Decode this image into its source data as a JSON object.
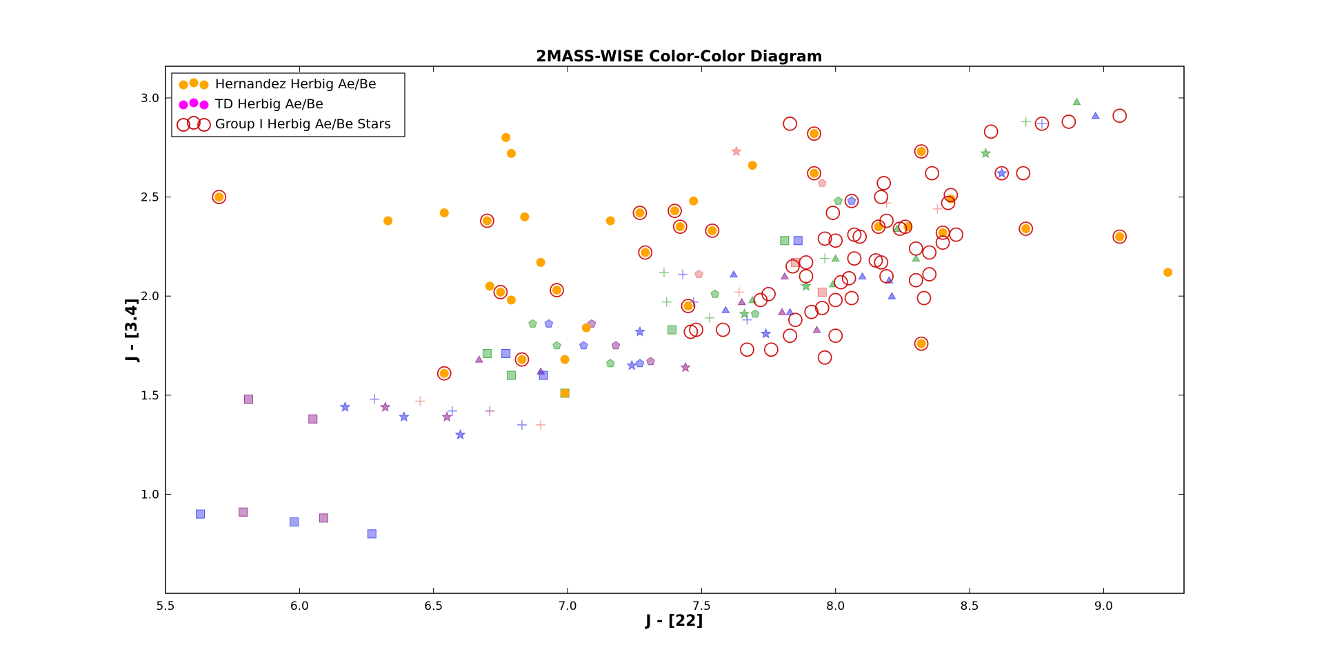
{
  "chart_data": {
    "type": "scatter",
    "title": "2MASS-WISE Color-Color Diagram",
    "xlabel": "J - [22]",
    "ylabel": "J - [3.4]",
    "xlim": [
      5.5,
      9.3
    ],
    "ylim": [
      0.5,
      3.16
    ],
    "xticks": [
      "5.5",
      "6.0",
      "6.5",
      "7.0",
      "7.5",
      "8.0",
      "8.5",
      "9.0"
    ],
    "yticks": [
      "1.0",
      "1.5",
      "2.0",
      "2.5",
      "3.0"
    ],
    "grid": false,
    "legend_position": "top-left",
    "colors": {
      "hernandez": "#ffa500",
      "td": "#ff00ff",
      "group1": "#cc0000",
      "blue": "#3333ee",
      "green": "#2ca02c",
      "purple": "#8b1a8b",
      "pink": "#ee6666"
    },
    "legend": [
      {
        "label": "Hernandez Herbig Ae/Be",
        "marker": "filled-circle",
        "color": "#ffa500"
      },
      {
        "label": "TD Herbig Ae/Be",
        "marker": "filled-circle",
        "color": "#ff00ff"
      },
      {
        "label": "Group I Herbig Ae/Be Stars",
        "marker": "open-circle",
        "color": "#cc0000"
      }
    ],
    "series": [
      {
        "name": "Hernandez Herbig Ae/Be",
        "points": [
          [
            5.7,
            2.5
          ],
          [
            6.33,
            2.38
          ],
          [
            6.54,
            2.42
          ],
          [
            6.54,
            1.61
          ],
          [
            6.7,
            2.38
          ],
          [
            6.71,
            2.05
          ],
          [
            6.75,
            2.02
          ],
          [
            6.77,
            2.8
          ],
          [
            6.79,
            2.72
          ],
          [
            6.79,
            1.98
          ],
          [
            6.83,
            1.68
          ],
          [
            6.84,
            2.4
          ],
          [
            6.9,
            2.17
          ],
          [
            6.96,
            2.03
          ],
          [
            6.99,
            1.68
          ],
          [
            6.99,
            1.51
          ],
          [
            7.07,
            1.84
          ],
          [
            7.16,
            2.38
          ],
          [
            7.27,
            2.42
          ],
          [
            7.29,
            2.22
          ],
          [
            7.4,
            2.43
          ],
          [
            7.42,
            2.35
          ],
          [
            7.45,
            1.95
          ],
          [
            7.47,
            2.48
          ],
          [
            7.54,
            2.33
          ],
          [
            7.69,
            2.66
          ],
          [
            7.92,
            2.82
          ],
          [
            7.92,
            2.62
          ],
          [
            8.16,
            2.35
          ],
          [
            8.27,
            2.35
          ],
          [
            8.32,
            2.73
          ],
          [
            8.32,
            1.76
          ],
          [
            8.4,
            2.32
          ],
          [
            8.71,
            2.34
          ],
          [
            9.06,
            2.3
          ],
          [
            9.24,
            2.12
          ],
          [
            8.43,
            2.49
          ]
        ]
      },
      {
        "name": "Group I Herbig Ae/Be Stars",
        "points": [
          [
            5.7,
            2.5
          ],
          [
            6.54,
            1.61
          ],
          [
            6.7,
            2.38
          ],
          [
            6.75,
            2.02
          ],
          [
            6.83,
            1.68
          ],
          [
            6.96,
            2.03
          ],
          [
            7.27,
            2.42
          ],
          [
            7.29,
            2.22
          ],
          [
            7.4,
            2.43
          ],
          [
            7.42,
            2.35
          ],
          [
            7.45,
            1.95
          ],
          [
            7.54,
            2.33
          ],
          [
            7.92,
            2.82
          ],
          [
            7.92,
            2.62
          ],
          [
            8.16,
            2.35
          ],
          [
            8.32,
            2.73
          ],
          [
            8.32,
            1.76
          ],
          [
            8.4,
            2.32
          ],
          [
            8.71,
            2.34
          ],
          [
            9.06,
            2.3
          ],
          [
            7.46,
            1.82
          ],
          [
            7.48,
            1.83
          ],
          [
            7.58,
            1.83
          ],
          [
            7.67,
            1.73
          ],
          [
            7.72,
            1.98
          ],
          [
            7.75,
            2.01
          ],
          [
            7.76,
            1.73
          ],
          [
            7.83,
            2.87
          ],
          [
            7.83,
            1.8
          ],
          [
            7.84,
            2.15
          ],
          [
            7.85,
            1.88
          ],
          [
            7.89,
            2.17
          ],
          [
            7.89,
            2.1
          ],
          [
            7.91,
            1.92
          ],
          [
            7.95,
            1.94
          ],
          [
            7.96,
            2.29
          ],
          [
            7.96,
            1.69
          ],
          [
            7.99,
            2.42
          ],
          [
            8.0,
            2.28
          ],
          [
            8.0,
            1.98
          ],
          [
            8.0,
            1.8
          ],
          [
            8.02,
            2.07
          ],
          [
            8.05,
            2.09
          ],
          [
            8.06,
            1.99
          ],
          [
            8.07,
            2.31
          ],
          [
            8.07,
            2.19
          ],
          [
            8.09,
            2.3
          ],
          [
            8.15,
            2.18
          ],
          [
            8.17,
            2.5
          ],
          [
            8.17,
            2.17
          ],
          [
            8.18,
            2.57
          ],
          [
            8.19,
            2.38
          ],
          [
            8.19,
            2.1
          ],
          [
            8.24,
            2.34
          ],
          [
            8.26,
            2.35
          ],
          [
            8.3,
            2.24
          ],
          [
            8.3,
            2.08
          ],
          [
            8.33,
            1.99
          ],
          [
            8.35,
            2.22
          ],
          [
            8.35,
            2.11
          ],
          [
            8.36,
            2.62
          ],
          [
            8.4,
            2.27
          ],
          [
            8.42,
            2.47
          ],
          [
            8.43,
            2.51
          ],
          [
            8.45,
            2.31
          ],
          [
            8.58,
            2.83
          ],
          [
            8.62,
            2.62
          ],
          [
            8.7,
            2.62
          ],
          [
            8.77,
            2.87
          ],
          [
            8.87,
            2.88
          ],
          [
            9.06,
            2.91
          ],
          [
            8.06,
            2.48
          ]
        ]
      },
      {
        "name": "",
        "points": [
          [
            5.63,
            0.9,
            "square",
            "blue"
          ],
          [
            5.79,
            0.91,
            "square",
            "purple"
          ],
          [
            5.81,
            1.48,
            "square",
            "purple"
          ],
          [
            5.98,
            0.86,
            "square",
            "blue"
          ],
          [
            6.05,
            1.38,
            "square",
            "purple"
          ],
          [
            6.09,
            0.88,
            "square",
            "purple"
          ],
          [
            6.17,
            1.44,
            "star",
            "blue"
          ],
          [
            6.27,
            0.8,
            "square",
            "blue"
          ],
          [
            6.28,
            1.48,
            "plus",
            "blue"
          ],
          [
            6.32,
            1.44,
            "star",
            "purple"
          ],
          [
            6.39,
            1.39,
            "star",
            "blue"
          ],
          [
            6.45,
            1.47,
            "plus",
            "pink"
          ],
          [
            6.55,
            1.39,
            "star",
            "purple"
          ],
          [
            6.57,
            1.42,
            "plus",
            "blue"
          ],
          [
            6.6,
            1.3,
            "star",
            "blue"
          ],
          [
            6.67,
            1.68,
            "triangle",
            "purple"
          ],
          [
            6.7,
            1.71,
            "square",
            "green"
          ],
          [
            6.71,
            1.42,
            "plus",
            "purple"
          ],
          [
            6.77,
            1.71,
            "square",
            "blue"
          ],
          [
            6.79,
            1.6,
            "square",
            "green"
          ],
          [
            6.83,
            1.35,
            "plus",
            "blue"
          ],
          [
            6.87,
            1.86,
            "pentagon",
            "green"
          ],
          [
            6.9,
            1.62,
            "triangle",
            "purple"
          ],
          [
            6.91,
            1.6,
            "square",
            "blue"
          ],
          [
            6.9,
            1.35,
            "plus",
            "pink"
          ],
          [
            6.93,
            1.86,
            "pentagon",
            "blue"
          ],
          [
            6.96,
            1.75,
            "pentagon",
            "green"
          ],
          [
            6.99,
            1.51,
            "square",
            "green"
          ],
          [
            7.06,
            1.75,
            "pentagon",
            "blue"
          ],
          [
            7.09,
            1.86,
            "pentagon",
            "purple"
          ],
          [
            7.16,
            1.66,
            "pentagon",
            "green"
          ],
          [
            7.18,
            1.75,
            "pentagon",
            "purple"
          ],
          [
            7.24,
            1.65,
            "star",
            "blue"
          ],
          [
            7.27,
            1.66,
            "pentagon",
            "blue"
          ],
          [
            7.27,
            1.82,
            "star",
            "blue"
          ],
          [
            7.31,
            1.67,
            "pentagon",
            "purple"
          ],
          [
            7.36,
            2.12,
            "plus",
            "green"
          ],
          [
            7.37,
            1.97,
            "plus",
            "green"
          ],
          [
            7.39,
            1.83,
            "square",
            "green"
          ],
          [
            7.43,
            2.11,
            "plus",
            "blue"
          ],
          [
            7.44,
            1.64,
            "star",
            "purple"
          ],
          [
            7.47,
            1.97,
            "plus",
            "blue"
          ],
          [
            7.49,
            2.11,
            "pentagon",
            "pink"
          ],
          [
            7.53,
            1.89,
            "plus",
            "green"
          ],
          [
            7.55,
            2.01,
            "pentagon",
            "green"
          ],
          [
            7.59,
            1.93,
            "triangle",
            "blue"
          ],
          [
            7.62,
            2.11,
            "triangle",
            "blue"
          ],
          [
            7.63,
            2.73,
            "star",
            "pink"
          ],
          [
            7.64,
            2.02,
            "plus",
            "pink"
          ],
          [
            7.65,
            1.97,
            "triangle",
            "purple"
          ],
          [
            7.66,
            1.91,
            "star",
            "green"
          ],
          [
            7.67,
            1.88,
            "plus",
            "blue"
          ],
          [
            7.69,
            1.98,
            "triangle",
            "green"
          ],
          [
            7.7,
            1.91,
            "pentagon",
            "green"
          ],
          [
            7.74,
            1.81,
            "star",
            "blue"
          ],
          [
            7.8,
            1.92,
            "triangle",
            "purple"
          ],
          [
            7.81,
            2.28,
            "square",
            "green"
          ],
          [
            7.81,
            2.1,
            "triangle",
            "purple"
          ],
          [
            7.83,
            1.92,
            "triangle",
            "blue"
          ],
          [
            7.85,
            2.17,
            "square",
            "pink"
          ],
          [
            7.86,
            2.28,
            "square",
            "blue"
          ],
          [
            7.89,
            2.05,
            "star",
            "green"
          ],
          [
            7.93,
            1.83,
            "triangle",
            "purple"
          ],
          [
            7.95,
            2.02,
            "square",
            "pink"
          ],
          [
            7.95,
            2.57,
            "pentagon",
            "pink"
          ],
          [
            7.96,
            2.19,
            "plus",
            "green"
          ],
          [
            7.99,
            2.06,
            "triangle",
            "green"
          ],
          [
            8.0,
            2.19,
            "triangle",
            "green"
          ],
          [
            8.01,
            2.48,
            "pentagon",
            "green"
          ],
          [
            8.06,
            2.48,
            "pentagon",
            "blue"
          ],
          [
            8.1,
            2.1,
            "triangle",
            "blue"
          ],
          [
            8.19,
            2.47,
            "plus",
            "pink"
          ],
          [
            8.2,
            2.08,
            "triangle",
            "blue"
          ],
          [
            8.21,
            2.0,
            "triangle",
            "blue"
          ],
          [
            8.23,
            2.34,
            "triangle",
            "green"
          ],
          [
            8.3,
            2.19,
            "triangle",
            "green"
          ],
          [
            8.38,
            2.44,
            "plus",
            "pink"
          ],
          [
            8.56,
            2.72,
            "star",
            "green"
          ],
          [
            8.62,
            2.62,
            "star",
            "blue"
          ],
          [
            8.71,
            2.88,
            "plus",
            "green"
          ],
          [
            8.77,
            2.87,
            "plus",
            "blue"
          ],
          [
            8.9,
            2.98,
            "triangle",
            "green"
          ],
          [
            8.97,
            2.91,
            "triangle",
            "blue"
          ]
        ]
      }
    ]
  }
}
